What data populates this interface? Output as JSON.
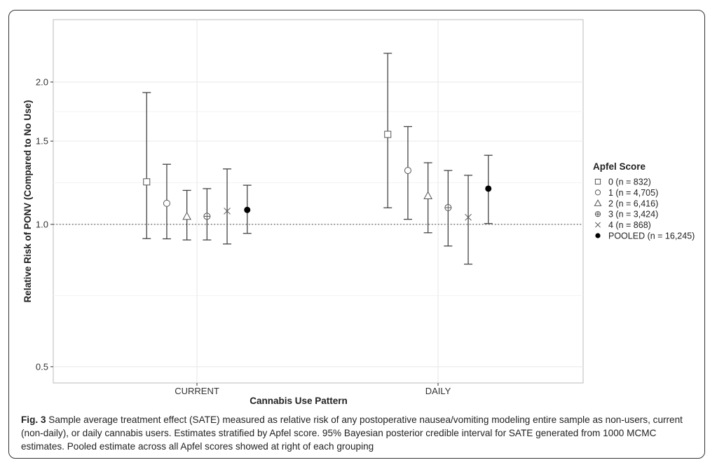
{
  "chart_data": {
    "type": "scatter",
    "subtype": "point-with-errorbars",
    "xlabel": "Cannabis Use Pattern",
    "ylabel": "Relative Risk of PONV (Compared to No Use)",
    "y_scale": "log",
    "ylim": [
      0.462,
      2.71
    ],
    "y_ticks": [
      0.5,
      1.0,
      1.5,
      2.0
    ],
    "y_tick_labels": [
      "0.5",
      "1.0",
      "1.5",
      "2.0"
    ],
    "reference_line": 1.0,
    "grid": true,
    "categories": [
      "CURRENT",
      "DAILY"
    ],
    "legend_title": "Apfel Score",
    "legend_position": "right",
    "series": [
      {
        "name": "0 (n = 832)",
        "shape": "square-open",
        "estimate": [
          1.23,
          1.55
        ],
        "lower": [
          0.933,
          1.084
        ],
        "upper": [
          1.9,
          2.3
        ]
      },
      {
        "name": "1 (n = 4,705)",
        "shape": "circle-open",
        "estimate": [
          1.108,
          1.3
        ],
        "lower": [
          0.932,
          1.025
        ],
        "upper": [
          1.34,
          1.61
        ]
      },
      {
        "name": "2 (n = 6,416)",
        "shape": "triangle-open",
        "estimate": [
          1.04,
          1.15
        ],
        "lower": [
          0.927,
          0.96
        ],
        "upper": [
          1.18,
          1.35
        ]
      },
      {
        "name": "3 (n = 3,424)",
        "shape": "circle-plus",
        "estimate": [
          1.04,
          1.085
        ],
        "lower": [
          0.927,
          0.9
        ],
        "upper": [
          1.19,
          1.3
        ]
      },
      {
        "name": "4 (n = 868)",
        "shape": "cross",
        "estimate": [
          1.067,
          1.035
        ],
        "lower": [
          0.909,
          0.824
        ],
        "upper": [
          1.31,
          1.27
        ]
      },
      {
        "name": "POOLED (n = 16,245)",
        "shape": "circle-filled",
        "estimate": [
          1.073,
          1.19
        ],
        "lower": [
          0.957,
          1.004
        ],
        "upper": [
          1.21,
          1.4
        ]
      }
    ]
  },
  "caption": {
    "label": "Fig. 3",
    "text": " Sample average treatment effect (SATE) measured as relative risk of any postoperative nausea/vomiting modeling entire sample as non-users, current (non-daily), or daily cannabis users. Estimates stratified by Apfel score. 95% Bayesian posterior credible interval for SATE generated from 1000 MCMC estimates. Pooled estimate across all Apfel scores showed at right of each grouping"
  },
  "colors": {
    "line": "#444444",
    "grid": "#ebebeb",
    "panel_border": "#bbbbbb",
    "point": "#000000"
  }
}
